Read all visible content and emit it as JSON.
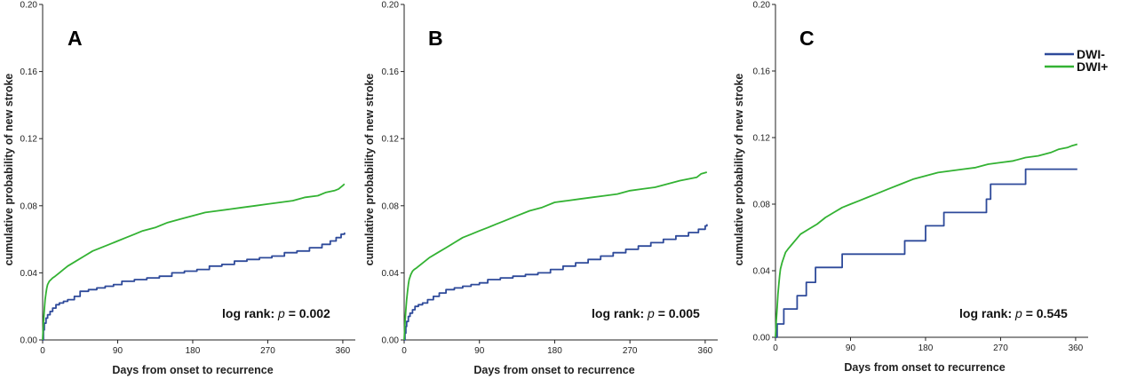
{
  "colors": {
    "dwi_neg": "#2e4a9a",
    "dwi_pos": "#33b233",
    "axis": "#222222"
  },
  "legend": {
    "items": [
      "DWI-",
      "DWI+"
    ],
    "placement": "top-right"
  },
  "chart_data": [
    {
      "type": "line",
      "panel": "A",
      "xlabel": "Days from onset to recurrence",
      "ylabel": "cumulative probability of new stroke",
      "xlim": [
        0,
        375
      ],
      "ylim": [
        0,
        0.2
      ],
      "xticks": [
        "0",
        "90",
        "180",
        "270",
        "360"
      ],
      "yticks": [
        "0.00",
        "0.04",
        "0.08",
        "0.12",
        "0.16",
        "0.20"
      ],
      "annotation": {
        "prefix": "log rank: ",
        "p_label": "p",
        "suffix": " = 0.002"
      },
      "series": [
        {
          "name": "DWI-",
          "step": true,
          "x": [
            0,
            1,
            2,
            4,
            6,
            9,
            12,
            16,
            20,
            25,
            30,
            38,
            45,
            55,
            65,
            75,
            85,
            95,
            110,
            125,
            140,
            155,
            170,
            185,
            200,
            215,
            230,
            245,
            260,
            275,
            290,
            305,
            320,
            335,
            345,
            352,
            358,
            362
          ],
          "y": [
            0,
            0.006,
            0.01,
            0.013,
            0.015,
            0.017,
            0.019,
            0.021,
            0.022,
            0.023,
            0.024,
            0.026,
            0.029,
            0.03,
            0.031,
            0.032,
            0.033,
            0.035,
            0.036,
            0.037,
            0.038,
            0.04,
            0.041,
            0.042,
            0.044,
            0.045,
            0.047,
            0.048,
            0.049,
            0.05,
            0.052,
            0.053,
            0.055,
            0.057,
            0.059,
            0.061,
            0.063,
            0.064
          ]
        },
        {
          "name": "DWI+",
          "step": false,
          "x": [
            0,
            1,
            2,
            3,
            4,
            5,
            6,
            8,
            10,
            12,
            15,
            20,
            25,
            30,
            40,
            50,
            60,
            70,
            80,
            90,
            100,
            110,
            120,
            135,
            150,
            165,
            180,
            195,
            210,
            225,
            240,
            255,
            270,
            285,
            300,
            315,
            330,
            340,
            350,
            355,
            360,
            362
          ],
          "y": [
            0,
            0.01,
            0.018,
            0.024,
            0.028,
            0.031,
            0.033,
            0.035,
            0.036,
            0.037,
            0.038,
            0.04,
            0.042,
            0.044,
            0.047,
            0.05,
            0.053,
            0.055,
            0.057,
            0.059,
            0.061,
            0.063,
            0.065,
            0.067,
            0.07,
            0.072,
            0.074,
            0.076,
            0.077,
            0.078,
            0.079,
            0.08,
            0.081,
            0.082,
            0.083,
            0.085,
            0.086,
            0.088,
            0.089,
            0.09,
            0.092,
            0.093
          ]
        }
      ]
    },
    {
      "type": "line",
      "panel": "B",
      "xlabel": "Days from onset to recurrence",
      "ylabel": "cumulative probability of new stroke",
      "xlim": [
        0,
        375
      ],
      "ylim": [
        0,
        0.2
      ],
      "xticks": [
        "0",
        "90",
        "180",
        "270",
        "360"
      ],
      "yticks": [
        "0.00",
        "0.04",
        "0.08",
        "0.12",
        "0.16",
        "0.20"
      ],
      "annotation": {
        "prefix": "log rank: ",
        "p_label": "p",
        "suffix": " = 0.005"
      },
      "series": [
        {
          "name": "DWI-",
          "step": true,
          "x": [
            0,
            1,
            2,
            3,
            5,
            7,
            10,
            13,
            17,
            22,
            28,
            35,
            42,
            50,
            60,
            70,
            80,
            90,
            100,
            115,
            130,
            145,
            160,
            175,
            190,
            205,
            220,
            235,
            250,
            265,
            280,
            295,
            310,
            325,
            340,
            352,
            360,
            362
          ],
          "y": [
            0,
            0.004,
            0.008,
            0.011,
            0.014,
            0.016,
            0.018,
            0.02,
            0.021,
            0.022,
            0.024,
            0.026,
            0.028,
            0.03,
            0.031,
            0.032,
            0.033,
            0.034,
            0.036,
            0.037,
            0.038,
            0.039,
            0.04,
            0.042,
            0.044,
            0.046,
            0.048,
            0.05,
            0.052,
            0.054,
            0.056,
            0.058,
            0.06,
            0.062,
            0.064,
            0.066,
            0.068,
            0.069
          ]
        },
        {
          "name": "DWI+",
          "step": false,
          "x": [
            0,
            1,
            2,
            3,
            4,
            5,
            6,
            8,
            10,
            12,
            15,
            20,
            25,
            30,
            40,
            50,
            60,
            70,
            80,
            90,
            100,
            110,
            120,
            135,
            150,
            165,
            180,
            195,
            210,
            225,
            240,
            255,
            270,
            285,
            300,
            315,
            330,
            340,
            350,
            355,
            362
          ],
          "y": [
            0,
            0.01,
            0.018,
            0.024,
            0.029,
            0.033,
            0.036,
            0.039,
            0.041,
            0.042,
            0.043,
            0.045,
            0.047,
            0.049,
            0.052,
            0.055,
            0.058,
            0.061,
            0.063,
            0.065,
            0.067,
            0.069,
            0.071,
            0.074,
            0.077,
            0.079,
            0.082,
            0.083,
            0.084,
            0.085,
            0.086,
            0.087,
            0.089,
            0.09,
            0.091,
            0.093,
            0.095,
            0.096,
            0.097,
            0.099,
            0.1
          ]
        }
      ]
    },
    {
      "type": "line",
      "panel": "C",
      "xlabel": "Days from onset to recurrence",
      "ylabel": "cumulative probability of new stroke",
      "xlim": [
        0,
        375
      ],
      "ylim": [
        0,
        0.2
      ],
      "xticks": [
        "0",
        "90",
        "180",
        "270",
        "360"
      ],
      "yticks": [
        "0.00",
        "0.04",
        "0.08",
        "0.12",
        "0.16",
        "0.20"
      ],
      "annotation": {
        "prefix": "log rank: ",
        "p_label": "p",
        "suffix": " = 0.545"
      },
      "series": [
        {
          "name": "DWI-",
          "step": true,
          "x": [
            0,
            2,
            10,
            26,
            37,
            48,
            57,
            80,
            155,
            180,
            202,
            253,
            258,
            275,
            300,
            362
          ],
          "y": [
            0,
            0.008,
            0.017,
            0.025,
            0.033,
            0.042,
            0.042,
            0.05,
            0.058,
            0.067,
            0.075,
            0.083,
            0.092,
            0.092,
            0.101,
            0.101
          ]
        },
        {
          "name": "DWI+",
          "step": false,
          "x": [
            0,
            1,
            2,
            3,
            4,
            5,
            6,
            8,
            10,
            12,
            15,
            20,
            25,
            30,
            40,
            50,
            60,
            70,
            80,
            90,
            100,
            110,
            120,
            135,
            150,
            165,
            180,
            195,
            210,
            225,
            240,
            255,
            270,
            285,
            300,
            315,
            330,
            340,
            350,
            355,
            362
          ],
          "y": [
            0,
            0.01,
            0.018,
            0.026,
            0.032,
            0.037,
            0.041,
            0.045,
            0.048,
            0.051,
            0.053,
            0.056,
            0.059,
            0.062,
            0.065,
            0.068,
            0.072,
            0.075,
            0.078,
            0.08,
            0.082,
            0.084,
            0.086,
            0.089,
            0.092,
            0.095,
            0.097,
            0.099,
            0.1,
            0.101,
            0.102,
            0.104,
            0.105,
            0.106,
            0.108,
            0.109,
            0.111,
            0.113,
            0.114,
            0.115,
            0.116
          ]
        }
      ]
    }
  ]
}
